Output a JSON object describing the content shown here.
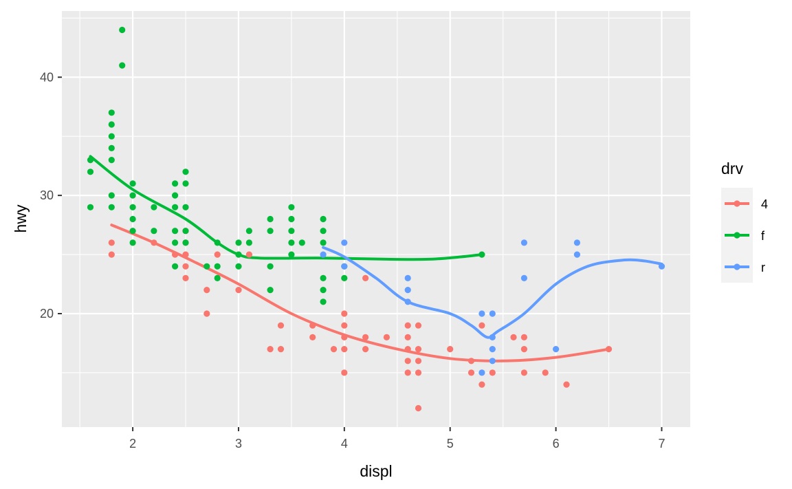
{
  "chart_data": {
    "type": "scatter",
    "xlabel": "displ",
    "ylabel": "hwy",
    "xlim": [
      1.33,
      7.27
    ],
    "ylim": [
      10.4,
      45.6
    ],
    "x_ticks": [
      2,
      3,
      4,
      5,
      6,
      7
    ],
    "y_ticks": [
      20,
      30,
      40
    ],
    "grid": true,
    "legend": {
      "title": "drv",
      "placement": "right",
      "entries": [
        "4",
        "f",
        "r"
      ]
    },
    "colors": {
      "4": "#F8766D",
      "f": "#00BA38",
      "r": "#619CFF",
      "panel": "#EBEBEB",
      "grid": "#FFFFFF"
    },
    "series": [
      {
        "name": "4",
        "color": "#F8766D",
        "points": [
          [
            1.8,
            26
          ],
          [
            1.8,
            25
          ],
          [
            2.2,
            26
          ],
          [
            2.4,
            25
          ],
          [
            2.5,
            27
          ],
          [
            2.5,
            26
          ],
          [
            2.5,
            25
          ],
          [
            2.5,
            24
          ],
          [
            2.5,
            23
          ],
          [
            2.7,
            22
          ],
          [
            2.7,
            20
          ],
          [
            2.8,
            25
          ],
          [
            3.0,
            22
          ],
          [
            3.1,
            25
          ],
          [
            3.3,
            17
          ],
          [
            3.4,
            19
          ],
          [
            3.4,
            17
          ],
          [
            3.7,
            19
          ],
          [
            3.7,
            18
          ],
          [
            3.9,
            17
          ],
          [
            4.0,
            20
          ],
          [
            4.0,
            19
          ],
          [
            4.0,
            18
          ],
          [
            4.0,
            17
          ],
          [
            4.0,
            15
          ],
          [
            4.2,
            23
          ],
          [
            4.2,
            18
          ],
          [
            4.2,
            17
          ],
          [
            4.4,
            18
          ],
          [
            4.6,
            19
          ],
          [
            4.6,
            18
          ],
          [
            4.6,
            17
          ],
          [
            4.6,
            16
          ],
          [
            4.6,
            15
          ],
          [
            4.7,
            19
          ],
          [
            4.7,
            17
          ],
          [
            4.7,
            16
          ],
          [
            4.7,
            15
          ],
          [
            4.7,
            12
          ],
          [
            5.0,
            17
          ],
          [
            5.2,
            16
          ],
          [
            5.2,
            15
          ],
          [
            5.3,
            19
          ],
          [
            5.3,
            14
          ],
          [
            5.4,
            15
          ],
          [
            5.6,
            18
          ],
          [
            5.7,
            18
          ],
          [
            5.7,
            17
          ],
          [
            5.7,
            15
          ],
          [
            5.9,
            15
          ],
          [
            6.1,
            14
          ],
          [
            6.5,
            17
          ]
        ],
        "smooth": [
          [
            1.8,
            27.5
          ],
          [
            2.2,
            26
          ],
          [
            2.6,
            24.3
          ],
          [
            3.0,
            22.5
          ],
          [
            3.5,
            20
          ],
          [
            4.0,
            18.2
          ],
          [
            4.5,
            17
          ],
          [
            5.0,
            16.2
          ],
          [
            5.5,
            16
          ],
          [
            6.0,
            16.3
          ],
          [
            6.5,
            17
          ]
        ]
      },
      {
        "name": "f",
        "color": "#00BA38",
        "points": [
          [
            1.6,
            33
          ],
          [
            1.6,
            32
          ],
          [
            1.6,
            29
          ],
          [
            1.8,
            37
          ],
          [
            1.8,
            36
          ],
          [
            1.8,
            35
          ],
          [
            1.8,
            34
          ],
          [
            1.8,
            33
          ],
          [
            1.8,
            30
          ],
          [
            1.8,
            29
          ],
          [
            1.9,
            44
          ],
          [
            1.9,
            41
          ],
          [
            2.0,
            31
          ],
          [
            2.0,
            30
          ],
          [
            2.0,
            29
          ],
          [
            2.0,
            28
          ],
          [
            2.0,
            27
          ],
          [
            2.0,
            26
          ],
          [
            2.2,
            29
          ],
          [
            2.2,
            27
          ],
          [
            2.4,
            31
          ],
          [
            2.4,
            30
          ],
          [
            2.4,
            29
          ],
          [
            2.4,
            27
          ],
          [
            2.4,
            26
          ],
          [
            2.4,
            24
          ],
          [
            2.5,
            32
          ],
          [
            2.5,
            31
          ],
          [
            2.5,
            29
          ],
          [
            2.5,
            27
          ],
          [
            2.5,
            26
          ],
          [
            2.7,
            24
          ],
          [
            2.8,
            26
          ],
          [
            2.8,
            24
          ],
          [
            2.8,
            23
          ],
          [
            3.0,
            26
          ],
          [
            3.0,
            25
          ],
          [
            3.0,
            24
          ],
          [
            3.1,
            27
          ],
          [
            3.1,
            26
          ],
          [
            3.3,
            28
          ],
          [
            3.3,
            27
          ],
          [
            3.3,
            24
          ],
          [
            3.3,
            22
          ],
          [
            3.5,
            29
          ],
          [
            3.5,
            28
          ],
          [
            3.5,
            27
          ],
          [
            3.5,
            26
          ],
          [
            3.5,
            25
          ],
          [
            3.6,
            26
          ],
          [
            3.8,
            28
          ],
          [
            3.8,
            27
          ],
          [
            3.8,
            26
          ],
          [
            3.8,
            23
          ],
          [
            3.8,
            22
          ],
          [
            3.8,
            21
          ],
          [
            4.0,
            24
          ],
          [
            4.0,
            23
          ],
          [
            5.3,
            25
          ]
        ],
        "smooth": [
          [
            1.6,
            33.3
          ],
          [
            2.0,
            30.5
          ],
          [
            2.5,
            28
          ],
          [
            2.8,
            26
          ],
          [
            3.0,
            25
          ],
          [
            3.2,
            24.7
          ],
          [
            3.8,
            24.7
          ],
          [
            4.4,
            24.6
          ],
          [
            4.8,
            24.6
          ],
          [
            5.1,
            24.8
          ],
          [
            5.3,
            25
          ]
        ]
      },
      {
        "name": "r",
        "color": "#619CFF",
        "points": [
          [
            3.8,
            25
          ],
          [
            4.0,
            26
          ],
          [
            4.0,
            24
          ],
          [
            4.6,
            23
          ],
          [
            4.6,
            22
          ],
          [
            4.6,
            21
          ],
          [
            5.3,
            20
          ],
          [
            5.3,
            15
          ],
          [
            5.4,
            20
          ],
          [
            5.4,
            18
          ],
          [
            5.4,
            17
          ],
          [
            5.4,
            16
          ],
          [
            5.7,
            26
          ],
          [
            5.7,
            23
          ],
          [
            6.0,
            17
          ],
          [
            6.2,
            26
          ],
          [
            6.2,
            25
          ],
          [
            7.0,
            24
          ]
        ],
        "smooth": [
          [
            3.8,
            25.6
          ],
          [
            4.0,
            24.8
          ],
          [
            4.3,
            23
          ],
          [
            4.6,
            21
          ],
          [
            5.0,
            20
          ],
          [
            5.2,
            19
          ],
          [
            5.35,
            18
          ],
          [
            5.45,
            18.5
          ],
          [
            5.7,
            20
          ],
          [
            6.0,
            22.5
          ],
          [
            6.3,
            24
          ],
          [
            6.6,
            24.5
          ],
          [
            6.8,
            24.5
          ],
          [
            7.0,
            24.2
          ]
        ]
      }
    ]
  }
}
